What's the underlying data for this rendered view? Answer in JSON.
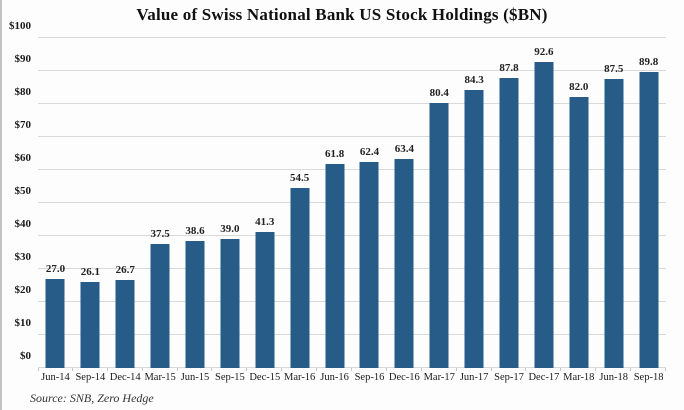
{
  "title": "Value of Swiss National Bank US Stock Holdings ($BN)",
  "source_note": "Source: SNB, Zero Hedge",
  "colors": {
    "bar": "#265c87",
    "gridline": "#d9d9d9",
    "axis_text": "#1a1a1a",
    "background": "#fdfdfd"
  },
  "chart_data": {
    "type": "bar",
    "title": "Value of Swiss National Bank US Stock Holdings ($BN)",
    "categories": [
      "Jun-14",
      "Sep-14",
      "Dec-14",
      "Mar-15",
      "Jun-15",
      "Sep-15",
      "Dec-15",
      "Mar-16",
      "Jun-16",
      "Sep-16",
      "Dec-16",
      "Mar-17",
      "Jun-17",
      "Sep-17",
      "Dec-17",
      "Mar-18",
      "Jun-18",
      "Sep-18"
    ],
    "values": [
      27.0,
      26.1,
      26.7,
      37.5,
      38.6,
      39.0,
      41.3,
      54.5,
      61.8,
      62.4,
      63.4,
      80.4,
      84.3,
      87.8,
      92.6,
      82.0,
      87.5,
      89.8
    ],
    "value_labels": [
      "27.0",
      "26.1",
      "26.7",
      "37.5",
      "38.6",
      "39.0",
      "41.3",
      "54.5",
      "61.8",
      "62.4",
      "63.4",
      "80.4",
      "84.3",
      "87.8",
      "92.6",
      "82.0",
      "87.5",
      "89.8"
    ],
    "y_tick_values": [
      0,
      10,
      20,
      30,
      40,
      50,
      60,
      70,
      80,
      90,
      100
    ],
    "y_tick_labels": [
      "$0",
      "$10",
      "$20",
      "$30",
      "$40",
      "$50",
      "$60",
      "$70",
      "$80",
      "$90",
      "$100"
    ],
    "ylim": [
      0,
      100
    ],
    "grid": true,
    "legend": "none",
    "xlabel": "",
    "ylabel": "",
    "source": "Source: SNB, Zero Hedge"
  }
}
